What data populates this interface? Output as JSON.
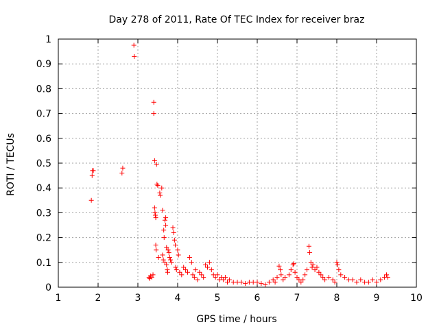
{
  "chart_data": {
    "type": "scatter",
    "title": "Day 278 of 2011, Rate Of TEC Index for receiver braz",
    "xlabel": "GPS time / hours",
    "ylabel": "ROTI / TECUs",
    "xlim": [
      1,
      10
    ],
    "ylim": [
      0,
      1
    ],
    "x_ticks": [
      "1",
      "2",
      "3",
      "4",
      "5",
      "6",
      "7",
      "8",
      "9",
      "10"
    ],
    "y_ticks": [
      "0",
      "0.1",
      "0.2",
      "0.3",
      "0.4",
      "0.5",
      "0.6",
      "0.7",
      "0.8",
      "0.9",
      "1"
    ],
    "grid": true,
    "marker": "+",
    "color": "#ff0000",
    "series": [
      {
        "x": [
          1.83,
          1.85,
          1.86,
          1.88,
          2.6,
          2.62,
          2.9,
          2.91,
          3.28,
          3.3,
          3.32,
          3.35,
          3.38,
          3.4,
          3.4,
          3.42,
          3.42,
          3.43,
          3.44,
          3.45,
          3.45,
          3.46,
          3.47,
          3.48,
          3.5,
          3.52,
          3.55,
          3.56,
          3.6,
          3.62,
          3.62,
          3.64,
          3.65,
          3.66,
          3.68,
          3.68,
          3.7,
          3.7,
          3.72,
          3.72,
          3.74,
          3.75,
          3.76,
          3.78,
          3.8,
          3.82,
          3.85,
          3.88,
          3.9,
          3.92,
          3.94,
          3.95,
          3.97,
          4.0,
          4.02,
          4.05,
          4.1,
          4.15,
          4.2,
          4.25,
          4.3,
          4.35,
          4.38,
          4.42,
          4.45,
          4.5,
          4.55,
          4.6,
          4.65,
          4.7,
          4.75,
          4.8,
          4.85,
          4.9,
          4.95,
          5.0,
          5.05,
          5.1,
          5.15,
          5.2,
          5.25,
          5.3,
          5.4,
          5.5,
          5.6,
          5.7,
          5.8,
          5.9,
          6.0,
          6.1,
          6.2,
          6.3,
          6.4,
          6.45,
          6.5,
          6.55,
          6.58,
          6.6,
          6.65,
          6.7,
          6.8,
          6.85,
          6.9,
          6.92,
          6.95,
          7.0,
          7.05,
          7.1,
          7.15,
          7.2,
          7.25,
          7.3,
          7.32,
          7.35,
          7.38,
          7.4,
          7.45,
          7.5,
          7.55,
          7.6,
          7.65,
          7.7,
          7.8,
          7.9,
          7.95,
          8.0,
          8.02,
          8.05,
          8.1,
          8.2,
          8.3,
          8.4,
          8.5,
          8.6,
          8.7,
          8.8,
          8.9,
          9.0,
          9.1,
          9.2,
          9.25,
          9.28
        ],
        "y": [
          0.35,
          0.45,
          0.47,
          0.47,
          0.46,
          0.48,
          0.975,
          0.93,
          0.04,
          0.035,
          0.045,
          0.04,
          0.05,
          0.745,
          0.7,
          0.51,
          0.32,
          0.3,
          0.29,
          0.28,
          0.17,
          0.15,
          0.495,
          0.415,
          0.41,
          0.12,
          0.38,
          0.37,
          0.4,
          0.31,
          0.13,
          0.11,
          0.23,
          0.2,
          0.1,
          0.27,
          0.28,
          0.25,
          0.16,
          0.09,
          0.07,
          0.06,
          0.15,
          0.14,
          0.12,
          0.11,
          0.1,
          0.24,
          0.22,
          0.19,
          0.17,
          0.08,
          0.07,
          0.15,
          0.13,
          0.06,
          0.05,
          0.08,
          0.07,
          0.06,
          0.12,
          0.1,
          0.05,
          0.04,
          0.07,
          0.03,
          0.06,
          0.05,
          0.04,
          0.09,
          0.08,
          0.1,
          0.07,
          0.05,
          0.04,
          0.05,
          0.03,
          0.04,
          0.03,
          0.04,
          0.02,
          0.03,
          0.02,
          0.02,
          0.02,
          0.015,
          0.02,
          0.02,
          0.02,
          0.015,
          0.01,
          0.02,
          0.03,
          0.02,
          0.04,
          0.085,
          0.07,
          0.05,
          0.03,
          0.04,
          0.05,
          0.07,
          0.09,
          0.095,
          0.06,
          0.04,
          0.03,
          0.02,
          0.03,
          0.05,
          0.07,
          0.165,
          0.14,
          0.1,
          0.08,
          0.09,
          0.07,
          0.08,
          0.06,
          0.05,
          0.04,
          0.03,
          0.04,
          0.03,
          0.02,
          0.1,
          0.09,
          0.07,
          0.05,
          0.04,
          0.03,
          0.03,
          0.02,
          0.03,
          0.02,
          0.02,
          0.03,
          0.02,
          0.03,
          0.04,
          0.05,
          0.04
        ]
      }
    ]
  }
}
